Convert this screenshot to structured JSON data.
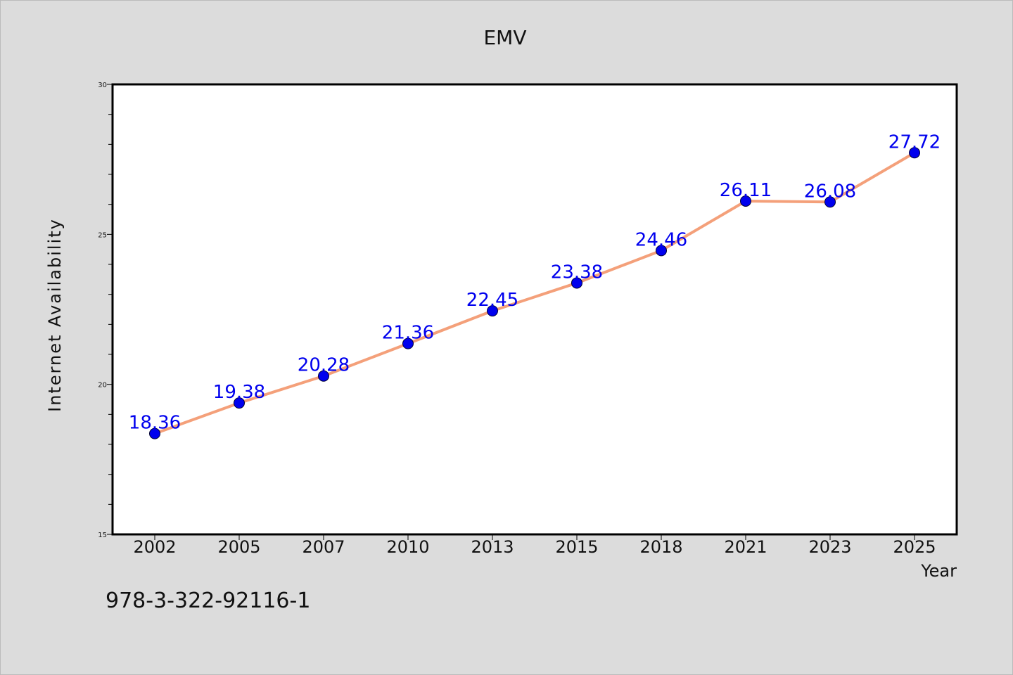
{
  "chart_data": {
    "type": "line",
    "title": "EMV",
    "xlabel": "Year",
    "ylabel": "Internet Availability",
    "categories": [
      "2002",
      "2005",
      "2007",
      "2010",
      "2013",
      "2015",
      "2018",
      "2021",
      "2023",
      "2025"
    ],
    "series": [
      {
        "values": [
          18.36,
          19.38,
          20.28,
          21.36,
          22.45,
          23.38,
          24.46,
          26.11,
          26.08,
          27.72
        ],
        "line_color": "#f4a07a",
        "marker_color": "#0000ee",
        "label_color": "#0000ee"
      }
    ],
    "data_labels": [
      "18.36",
      "19.38",
      "20.28",
      "21.36",
      "22.45",
      "23.38",
      "24.46",
      "26.11",
      "26.08",
      "27.72"
    ],
    "ylim": [
      15,
      30
    ],
    "y_ticks": [
      15,
      20,
      25,
      30
    ],
    "y_tick_labels": [
      "15",
      "20",
      "25",
      "30"
    ],
    "grid": false,
    "legend": "none",
    "background": "#dcdcdc",
    "plot_background": "#ffffff"
  },
  "annotation": "978-3-322-92116-1"
}
